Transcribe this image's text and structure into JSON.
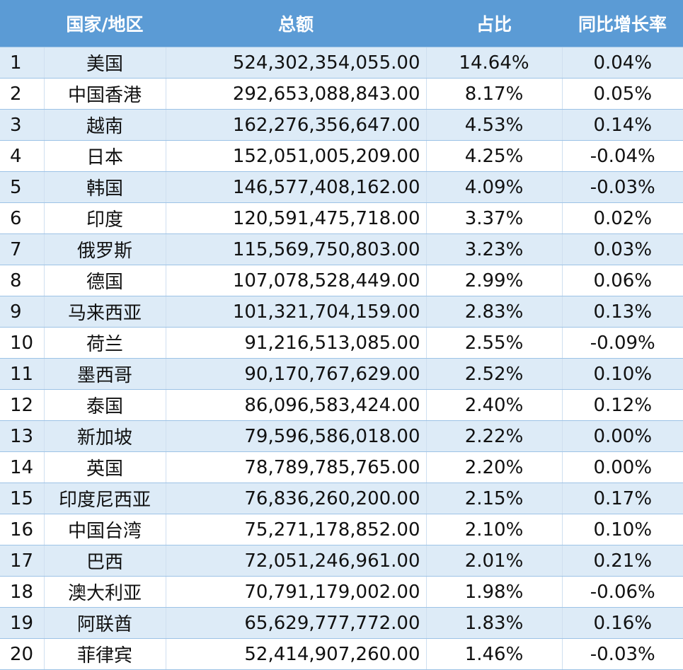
{
  "header": {
    "region": "国家/地区",
    "total": "总额",
    "share": "占比",
    "yoy": "同比增长率"
  },
  "rows": [
    {
      "rank": "1",
      "name": "美国",
      "total": "524,302,354,055.00",
      "share": "14.64%",
      "yoy": "0.04%"
    },
    {
      "rank": "2",
      "name": "中国香港",
      "total": "292,653,088,843.00",
      "share": "8.17%",
      "yoy": "0.05%"
    },
    {
      "rank": "3",
      "name": "越南",
      "total": "162,276,356,647.00",
      "share": "4.53%",
      "yoy": "0.14%"
    },
    {
      "rank": "4",
      "name": "日本",
      "total": "152,051,005,209.00",
      "share": "4.25%",
      "yoy": "-0.04%"
    },
    {
      "rank": "5",
      "name": "韩国",
      "total": "146,577,408,162.00",
      "share": "4.09%",
      "yoy": "-0.03%"
    },
    {
      "rank": "6",
      "name": "印度",
      "total": "120,591,475,718.00",
      "share": "3.37%",
      "yoy": "0.02%"
    },
    {
      "rank": "7",
      "name": "俄罗斯",
      "total": "115,569,750,803.00",
      "share": "3.23%",
      "yoy": "0.03%"
    },
    {
      "rank": "8",
      "name": "德国",
      "total": "107,078,528,449.00",
      "share": "2.99%",
      "yoy": "0.06%"
    },
    {
      "rank": "9",
      "name": "马来西亚",
      "total": "101,321,704,159.00",
      "share": "2.83%",
      "yoy": "0.13%"
    },
    {
      "rank": "10",
      "name": "荷兰",
      "total": "91,216,513,085.00",
      "share": "2.55%",
      "yoy": "-0.09%"
    },
    {
      "rank": "11",
      "name": "墨西哥",
      "total": "90,170,767,629.00",
      "share": "2.52%",
      "yoy": "0.10%"
    },
    {
      "rank": "12",
      "name": "泰国",
      "total": "86,096,583,424.00",
      "share": "2.40%",
      "yoy": "0.12%"
    },
    {
      "rank": "13",
      "name": "新加坡",
      "total": "79,596,586,018.00",
      "share": "2.22%",
      "yoy": "0.00%"
    },
    {
      "rank": "14",
      "name": "英国",
      "total": "78,789,785,765.00",
      "share": "2.20%",
      "yoy": "0.00%"
    },
    {
      "rank": "15",
      "name": "印度尼西亚",
      "total": "76,836,260,200.00",
      "share": "2.15%",
      "yoy": "0.17%"
    },
    {
      "rank": "16",
      "name": "中国台湾",
      "total": "75,271,178,852.00",
      "share": "2.10%",
      "yoy": "0.10%"
    },
    {
      "rank": "17",
      "name": "巴西",
      "total": "72,051,246,961.00",
      "share": "2.01%",
      "yoy": "0.21%"
    },
    {
      "rank": "18",
      "name": "澳大利亚",
      "total": "70,791,179,002.00",
      "share": "1.98%",
      "yoy": "-0.06%"
    },
    {
      "rank": "19",
      "name": "阿联酋",
      "total": "65,629,777,772.00",
      "share": "1.83%",
      "yoy": "0.16%"
    },
    {
      "rank": "20",
      "name": "菲律宾",
      "total": "52,414,907,260.00",
      "share": "1.46%",
      "yoy": "-0.03%"
    }
  ]
}
